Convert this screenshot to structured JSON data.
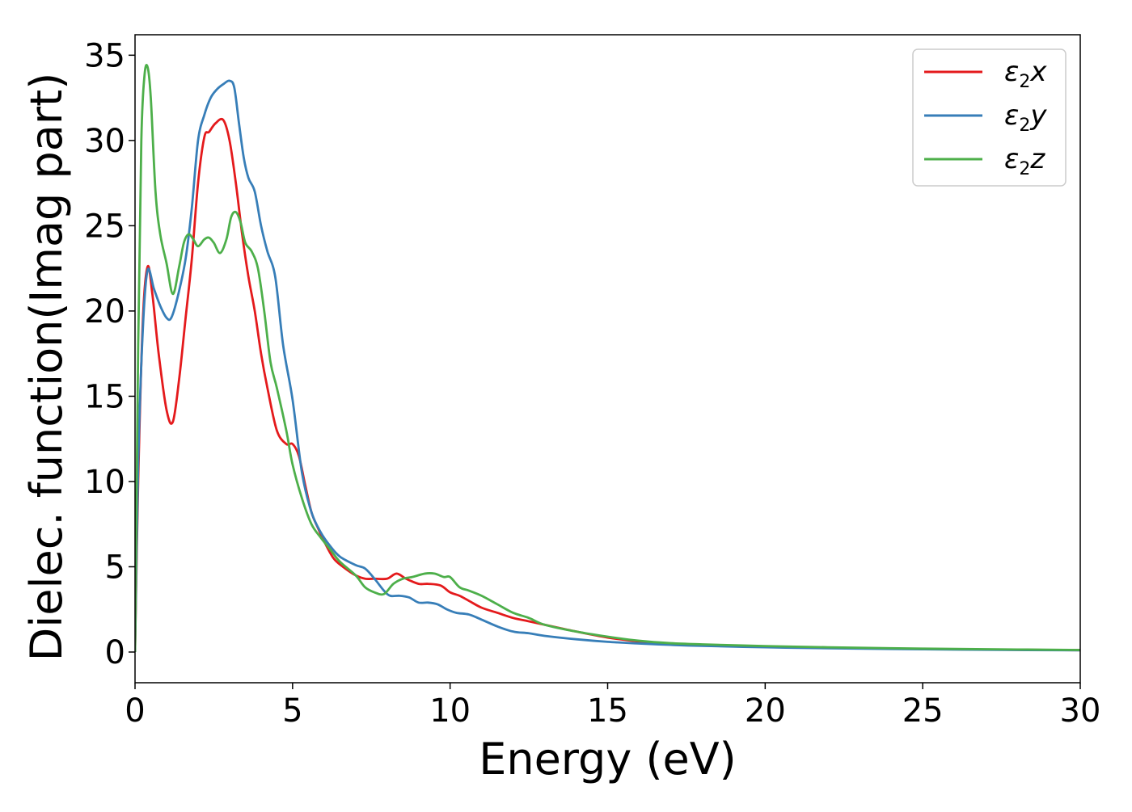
{
  "chart_data": {
    "type": "line",
    "xlabel": "Energy (eV)",
    "ylabel": "Dielec. function(Imag part)",
    "xlim": [
      0,
      30
    ],
    "ylim": [
      -1.8,
      36.2
    ],
    "xticks": [
      0,
      5,
      10,
      15,
      20,
      25,
      30
    ],
    "yticks": [
      0,
      5,
      10,
      15,
      20,
      25,
      30,
      35
    ],
    "grid": false,
    "legend_position": "top-right",
    "series": [
      {
        "name": "ε2x",
        "legend": {
          "base": "ε",
          "sub": "2",
          "tail": "x"
        },
        "color": "#e41a1c",
        "x": [
          0.0,
          0.1,
          0.25,
          0.4,
          0.55,
          0.75,
          1.0,
          1.2,
          1.4,
          1.6,
          1.8,
          2.0,
          2.2,
          2.35,
          2.55,
          2.8,
          3.0,
          3.2,
          3.4,
          3.6,
          3.8,
          4.0,
          4.2,
          4.5,
          4.8,
          5.0,
          5.2,
          5.4,
          5.6,
          5.8,
          6.0,
          6.3,
          6.6,
          7.0,
          7.3,
          7.6,
          8.0,
          8.3,
          8.6,
          9.0,
          9.3,
          9.7,
          10.0,
          10.3,
          10.6,
          11.0,
          11.5,
          12.0,
          12.5,
          13.0,
          14.0,
          15.0,
          16.0,
          17.0,
          18.0,
          20.0,
          22.0,
          25.0,
          28.0,
          30.0
        ],
        "y": [
          0.0,
          10.0,
          19.5,
          22.6,
          21.0,
          17.5,
          14.2,
          13.5,
          16.0,
          19.5,
          23.0,
          27.5,
          30.2,
          30.5,
          31.0,
          31.2,
          30.0,
          27.5,
          24.5,
          22.0,
          20.0,
          17.5,
          15.5,
          13.0,
          12.2,
          12.2,
          11.5,
          9.8,
          8.2,
          7.3,
          6.5,
          5.5,
          5.0,
          4.5,
          4.3,
          4.3,
          4.3,
          4.6,
          4.3,
          4.0,
          4.0,
          3.9,
          3.5,
          3.3,
          3.0,
          2.6,
          2.3,
          2.0,
          1.8,
          1.6,
          1.2,
          0.85,
          0.62,
          0.5,
          0.42,
          0.32,
          0.25,
          0.18,
          0.13,
          0.11
        ]
      },
      {
        "name": "ε2y",
        "legend": {
          "base": "ε",
          "sub": "2",
          "tail": "y"
        },
        "color": "#377eb8",
        "x": [
          0.0,
          0.1,
          0.25,
          0.4,
          0.6,
          0.8,
          1.0,
          1.15,
          1.35,
          1.6,
          1.8,
          2.0,
          2.2,
          2.4,
          2.6,
          2.8,
          3.0,
          3.15,
          3.3,
          3.45,
          3.6,
          3.8,
          4.0,
          4.2,
          4.45,
          4.7,
          5.0,
          5.3,
          5.6,
          5.9,
          6.2,
          6.5,
          7.0,
          7.3,
          7.6,
          7.9,
          8.1,
          8.4,
          8.7,
          9.0,
          9.3,
          9.6,
          9.9,
          10.2,
          10.6,
          11.0,
          11.5,
          12.0,
          12.5,
          13.0,
          14.0,
          15.0,
          16.0,
          17.0,
          18.0,
          20.0,
          22.0,
          25.0,
          28.0,
          30.0
        ],
        "y": [
          0.0,
          11.0,
          19.0,
          22.4,
          21.3,
          20.3,
          19.6,
          19.6,
          20.8,
          23.0,
          26.0,
          30.0,
          31.5,
          32.5,
          33.0,
          33.3,
          33.5,
          33.1,
          31.0,
          29.0,
          27.8,
          27.0,
          25.0,
          23.5,
          22.0,
          18.0,
          14.8,
          10.5,
          8.2,
          7.0,
          6.2,
          5.6,
          5.1,
          4.9,
          4.3,
          3.6,
          3.3,
          3.3,
          3.2,
          2.9,
          2.9,
          2.8,
          2.5,
          2.3,
          2.2,
          1.9,
          1.5,
          1.2,
          1.1,
          0.95,
          0.75,
          0.6,
          0.5,
          0.42,
          0.36,
          0.28,
          0.22,
          0.16,
          0.12,
          0.1
        ]
      },
      {
        "name": "ε2z",
        "legend": {
          "base": "ε",
          "sub": "2",
          "tail": "z"
        },
        "color": "#4daf4a",
        "x": [
          0.0,
          0.1,
          0.2,
          0.3,
          0.4,
          0.5,
          0.65,
          0.8,
          1.0,
          1.2,
          1.4,
          1.55,
          1.7,
          1.85,
          2.0,
          2.2,
          2.35,
          2.5,
          2.7,
          2.9,
          3.05,
          3.2,
          3.35,
          3.5,
          3.7,
          3.9,
          4.1,
          4.3,
          4.5,
          4.8,
          5.0,
          5.3,
          5.6,
          5.9,
          6.2,
          6.5,
          7.0,
          7.3,
          7.6,
          7.9,
          8.2,
          8.5,
          8.8,
          9.2,
          9.5,
          9.8,
          10.0,
          10.3,
          10.6,
          11.0,
          11.5,
          12.0,
          12.5,
          13.0,
          14.0,
          15.0,
          16.0,
          17.0,
          18.0,
          20.0,
          22.0,
          25.0,
          28.0,
          30.0
        ],
        "y": [
          0.0,
          18.0,
          30.0,
          33.8,
          34.3,
          32.5,
          27.0,
          24.5,
          22.8,
          21.0,
          22.6,
          24.0,
          24.5,
          24.2,
          23.8,
          24.2,
          24.3,
          24.0,
          23.4,
          24.2,
          25.5,
          25.8,
          25.2,
          24.0,
          23.5,
          22.5,
          20.0,
          17.0,
          15.5,
          13.0,
          11.0,
          9.0,
          7.5,
          6.7,
          6.0,
          5.3,
          4.5,
          3.8,
          3.5,
          3.4,
          4.0,
          4.3,
          4.4,
          4.6,
          4.6,
          4.4,
          4.4,
          3.8,
          3.6,
          3.3,
          2.8,
          2.3,
          2.0,
          1.6,
          1.2,
          0.9,
          0.66,
          0.52,
          0.45,
          0.35,
          0.28,
          0.2,
          0.15,
          0.12
        ]
      }
    ]
  }
}
